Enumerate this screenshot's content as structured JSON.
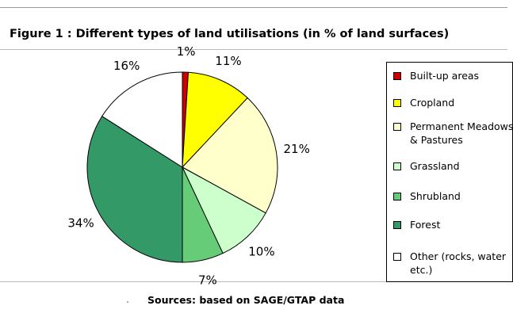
{
  "figure_title": "Figure 1 : Different types of land utilisations (in % of land surfaces)",
  "source_note": "Sources: based on SAGE/GTAP data",
  "chart_data": {
    "type": "pie",
    "title": "Figure 1 : Different types of land utilisations (in % of land surfaces)",
    "legend_position": "right",
    "slices": [
      {
        "label": "Built-up areas",
        "value": 1,
        "color": "#cc0000",
        "data_label": "1%"
      },
      {
        "label": "Cropland",
        "value": 11,
        "color": "#ffff00",
        "data_label": "11%"
      },
      {
        "label": "Permanent Meadows\n& Pastures",
        "value": 21,
        "color": "#ffffcc",
        "data_label": "21%"
      },
      {
        "label": "Grassland",
        "value": 10,
        "color": "#ccffcc",
        "data_label": "10%"
      },
      {
        "label": "Shrubland",
        "value": 7,
        "color": "#66cc77",
        "data_label": "7%"
      },
      {
        "label": "Forest",
        "value": 34,
        "color": "#339966",
        "data_label": "34%"
      },
      {
        "label": "Other (rocks, water\netc.)",
        "value": 16,
        "color": "#ffffff",
        "data_label": "16%"
      }
    ]
  }
}
